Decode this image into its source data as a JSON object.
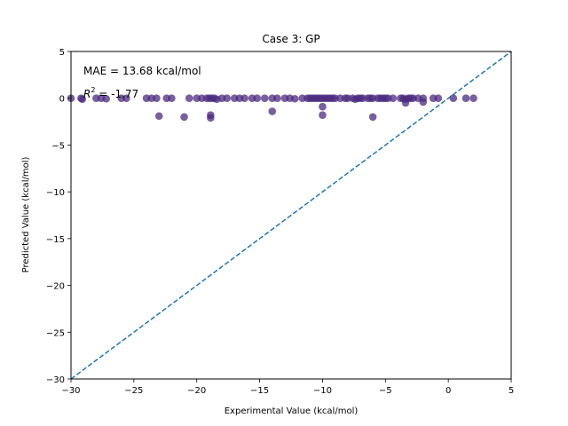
{
  "chart_data": {
    "type": "scatter",
    "title": "Case 3: GP",
    "xlabel": "Experimental Value (kcal/mol)",
    "ylabel": "Predicted Value (kcal/mol)",
    "xlim": [
      -30,
      5
    ],
    "ylim": [
      -30,
      5
    ],
    "xticks": [
      -30,
      -25,
      -20,
      -15,
      -10,
      -5,
      0,
      5
    ],
    "yticks": [
      -30,
      -25,
      -20,
      -15,
      -10,
      -5,
      0,
      5
    ],
    "grid": false,
    "annotations": {
      "mae": "MAE = 13.68 kcal/mol",
      "r2_symbol": "R",
      "r2_exp": "2",
      "r2_value": " = -1.77"
    },
    "reference_line": {
      "x": [
        -30,
        5
      ],
      "y": [
        -30,
        5
      ],
      "style": "dashed",
      "color": "#1f77b4"
    },
    "point_color": "#4b2a7f",
    "points": [
      [
        -30.0,
        0.0
      ],
      [
        -29.2,
        0.0
      ],
      [
        -29.1,
        -0.1
      ],
      [
        -28.0,
        0.0
      ],
      [
        -27.6,
        0.0
      ],
      [
        -27.2,
        -0.05
      ],
      [
        -26.0,
        0.0
      ],
      [
        -25.6,
        0.0
      ],
      [
        -24.0,
        0.0
      ],
      [
        -23.6,
        0.0
      ],
      [
        -23.2,
        0.0
      ],
      [
        -22.4,
        0.0
      ],
      [
        -22.0,
        0.0
      ],
      [
        -20.6,
        0.0
      ],
      [
        -20.0,
        0.0
      ],
      [
        -19.6,
        0.0
      ],
      [
        -19.2,
        0.0
      ],
      [
        -19.0,
        0.0
      ],
      [
        -18.8,
        0.0
      ],
      [
        -18.6,
        0.0
      ],
      [
        -18.4,
        -0.1
      ],
      [
        -18.0,
        0.0
      ],
      [
        -17.6,
        0.0
      ],
      [
        -17.0,
        0.0
      ],
      [
        -16.6,
        0.0
      ],
      [
        -16.2,
        0.0
      ],
      [
        -15.6,
        0.0
      ],
      [
        -15.2,
        0.0
      ],
      [
        -14.6,
        0.0
      ],
      [
        -14.0,
        0.0
      ],
      [
        -13.6,
        0.0
      ],
      [
        -13.0,
        0.0
      ],
      [
        -12.6,
        0.0
      ],
      [
        -12.2,
        -0.05
      ],
      [
        -11.6,
        0.0
      ],
      [
        -11.2,
        0.0
      ],
      [
        -11.0,
        0.0
      ],
      [
        -10.8,
        0.0
      ],
      [
        -10.6,
        0.0
      ],
      [
        -10.4,
        0.0
      ],
      [
        -10.2,
        0.0
      ],
      [
        -10.0,
        0.0
      ],
      [
        -9.8,
        0.0
      ],
      [
        -9.6,
        0.0
      ],
      [
        -9.4,
        0.0
      ],
      [
        -9.2,
        0.0
      ],
      [
        -9.0,
        0.0
      ],
      [
        -8.6,
        0.0
      ],
      [
        -8.2,
        0.0
      ],
      [
        -8.0,
        0.0
      ],
      [
        -7.6,
        0.0
      ],
      [
        -7.4,
        -0.1
      ],
      [
        -7.2,
        0.0
      ],
      [
        -7.0,
        0.0
      ],
      [
        -6.8,
        0.0
      ],
      [
        -6.4,
        0.0
      ],
      [
        -6.2,
        0.0
      ],
      [
        -6.0,
        0.0
      ],
      [
        -5.6,
        0.0
      ],
      [
        -5.4,
        0.0
      ],
      [
        -5.2,
        0.0
      ],
      [
        -5.0,
        0.0
      ],
      [
        -4.8,
        0.0
      ],
      [
        -4.4,
        0.0
      ],
      [
        -3.8,
        0.0
      ],
      [
        -3.6,
        0.0
      ],
      [
        -3.4,
        -0.1
      ],
      [
        -3.2,
        0.0
      ],
      [
        -3.0,
        0.0
      ],
      [
        -2.8,
        0.0
      ],
      [
        -2.4,
        0.0
      ],
      [
        -2.0,
        0.0
      ],
      [
        -0.8,
        0.0
      ],
      [
        0.4,
        0.0
      ],
      [
        1.4,
        0.0
      ],
      [
        2.0,
        0.0
      ],
      [
        -1.2,
        0.0
      ],
      [
        -23.0,
        -1.9
      ],
      [
        -21.0,
        -2.0
      ],
      [
        -18.9,
        -1.8
      ],
      [
        -18.9,
        -2.1
      ],
      [
        -14.0,
        -1.4
      ],
      [
        -10.0,
        -1.8
      ],
      [
        -10.0,
        -0.9
      ],
      [
        -6.0,
        -2.0
      ],
      [
        -3.4,
        -0.5
      ],
      [
        -2.0,
        -0.4
      ]
    ]
  }
}
